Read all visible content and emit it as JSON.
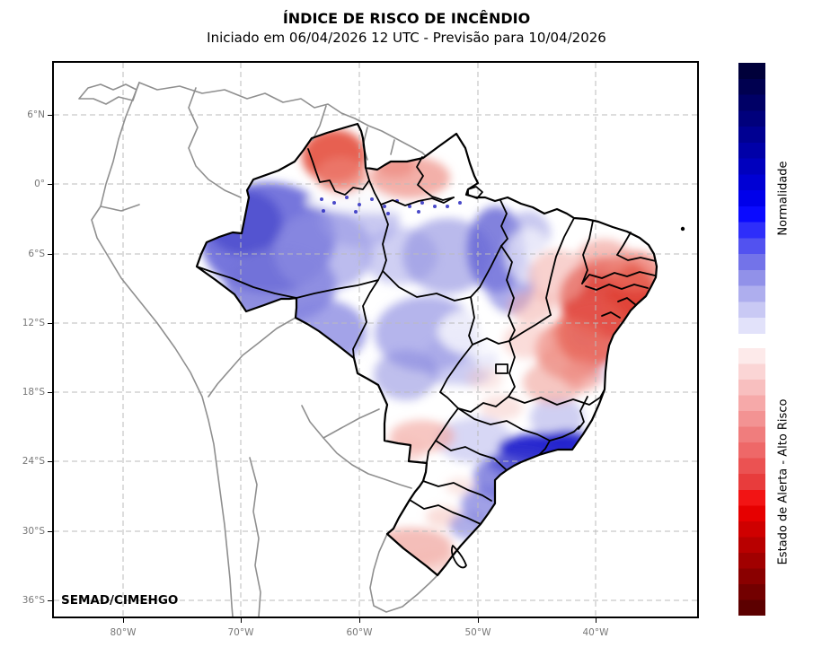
{
  "header": {
    "title": "ÍNDICE DE RISCO DE INCÊNDIO",
    "subtitle": "Iniciado em 06/04/2026 12 UTC - Previsão para 10/04/2026"
  },
  "map": {
    "credit": "SEMAD/CIMEHGO"
  },
  "axes": {
    "lat_ticks": [
      {
        "label": "6°N",
        "px": 128
      },
      {
        "label": "0°",
        "px": 205
      },
      {
        "label": "6°S",
        "px": 283
      },
      {
        "label": "12°S",
        "px": 360
      },
      {
        "label": "18°S",
        "px": 437
      },
      {
        "label": "24°S",
        "px": 514
      },
      {
        "label": "30°S",
        "px": 592
      },
      {
        "label": "36°S",
        "px": 669
      }
    ],
    "lon_ticks": [
      {
        "label": "80°W",
        "px": 137
      },
      {
        "label": "70°W",
        "px": 268
      },
      {
        "label": "60°W",
        "px": 400
      },
      {
        "label": "50°W",
        "px": 532
      },
      {
        "label": "40°W",
        "px": 663
      }
    ]
  },
  "colorbar": {
    "normal_label": "Normalidade",
    "alert_label": "Estado de Alerta - Alto Risco",
    "blue_steps": [
      "#00003a",
      "#000050",
      "#000066",
      "#00007c",
      "#000092",
      "#0000a8",
      "#0000be",
      "#0000d4",
      "#0000ea",
      "#0a0aff",
      "#2e2efa",
      "#5252f0",
      "#7373e9",
      "#9191e9",
      "#aeaeee",
      "#c9c9f4",
      "#e2e2fa"
    ],
    "red_steps": [
      "#fdeaea",
      "#fbd5d5",
      "#f8bfbf",
      "#f6a9a9",
      "#f39393",
      "#f07d7d",
      "#ee6868",
      "#eb5252",
      "#e83c3c",
      "#f21414",
      "#e60000",
      "#cf0000",
      "#b80000",
      "#a10000",
      "#8a0000",
      "#730000",
      "#5c0000"
    ]
  },
  "chart_data": {
    "type": "heatmap",
    "title": "ÍNDICE DE RISCO DE INCÊNDIO",
    "subtitle": "Iniciado em 06/04/2026 12 UTC - Previsão para 10/04/2026",
    "geography": "Brasil (malha estadual) sobre contorno da América do Sul",
    "grid": "dashed lat/lon",
    "legend_position": "colorbar à direita, dividida em dois blocos (azul em cima, vermelho embaixo)",
    "scale": {
      "normal": "azul = Normalidade (quanto mais escuro, mais próximo do normal)",
      "alert": "vermelho = Estado de Alerta - Alto Risco (quanto mais escuro, maior o risco)"
    },
    "x_ticks": [
      "80°W",
      "70°W",
      "60°W",
      "50°W",
      "40°W"
    ],
    "y_ticks": [
      "6°N",
      "0°",
      "6°S",
      "12°S",
      "18°S",
      "24°S",
      "30°S",
      "36°S"
    ],
    "point_feature": "Fernando de Noronha marcado como ponto (~32.5°W, 3.8°S)",
    "regions": [
      {
        "region": "Roraima",
        "reading": "risco moderado a alto (vermelho)"
      },
      {
        "region": "Norte do Pará",
        "reading": "risco leve (rosa claro)"
      },
      {
        "region": "Amapá",
        "reading": "neutro (branco / azul muito claro)"
      },
      {
        "region": "Amazonas",
        "reading": "normalidade (azul, mais escuro a oeste)"
      },
      {
        "region": "Acre",
        "reading": "normalidade leve (azul claro)"
      },
      {
        "region": "Rondônia",
        "reading": "normalidade (azul)"
      },
      {
        "region": "Pará centro-leste",
        "reading": "normalidade (azul claro com faixa branca ao longo do rio Amazonas)"
      },
      {
        "region": "Maranhão",
        "reading": "normalidade leve (azul claro) com litoral claro"
      },
      {
        "region": "Piauí",
        "reading": "risco leve (rosa)"
      },
      {
        "region": "Ceará",
        "reading": "risco moderado (vermelho claro)"
      },
      {
        "region": "RN / PB / PE interior",
        "reading": "alto risco (vermelho forte)"
      },
      {
        "region": "Alagoas / Sergipe",
        "reading": "risco moderado (vermelho)"
      },
      {
        "region": "Bahia norte e centro",
        "reading": "alto risco (vermelho forte)"
      },
      {
        "region": "Tocantins",
        "reading": "neutro a normalidade leve"
      },
      {
        "region": "Mato Grosso",
        "reading": "normalidade (azul)"
      },
      {
        "region": "Goiás / DF",
        "reading": "neutro com manchas rosa e azul claras"
      },
      {
        "region": "Minas Gerais",
        "reading": "norte rosa (risco leve), sul azul (normalidade)"
      },
      {
        "region": "Espírito Santo",
        "reading": "normalidade leve (azul claro)"
      },
      {
        "region": "Rio de Janeiro",
        "reading": "normalidade forte no litoral (azul escuro)"
      },
      {
        "region": "São Paulo",
        "reading": "faixa litorânea azul escuro (normalidade forte), interior neutro"
      },
      {
        "region": "Mato Grosso do Sul",
        "reading": "neutro com mancha rosa central"
      },
      {
        "region": "Paraná",
        "reading": "leste azul, oeste neutro/rosa claro"
      },
      {
        "region": "Santa Catarina",
        "reading": "leste azul, manchas rosa no oeste e litoral sul"
      },
      {
        "region": "Rio Grande do Sul",
        "reading": "interior rosa (risco leve), nordeste azul"
      }
    ],
    "render": {
      "blobs": [
        [
          238,
          195,
          75,
          62,
          "#5e5ed6",
          0.85
        ],
        [
          212,
          178,
          42,
          36,
          "#4646cc",
          0.7
        ],
        [
          252,
          248,
          62,
          42,
          "#7272da",
          0.8
        ],
        [
          300,
          300,
          48,
          36,
          "#8484e0",
          0.75
        ],
        [
          300,
          210,
          55,
          45,
          "#9090e2",
          0.6
        ],
        [
          340,
          175,
          45,
          30,
          "#9a9ae6",
          0.55
        ],
        [
          385,
          215,
          42,
          32,
          "#a8a8ea",
          0.55
        ],
        [
          438,
          215,
          50,
          42,
          "#8c8ce0",
          0.6
        ],
        [
          492,
          208,
          32,
          48,
          "#6262d4",
          0.8
        ],
        [
          508,
          242,
          28,
          38,
          "#8080de",
          0.65
        ],
        [
          528,
          190,
          25,
          25,
          "#9a9ae4",
          0.55
        ],
        [
          415,
          302,
          58,
          42,
          "#8e8ee2",
          0.65
        ],
        [
          452,
          332,
          42,
          30,
          "#a2a2e8",
          0.55
        ],
        [
          392,
          348,
          36,
          28,
          "#8a8ade",
          0.55
        ],
        [
          468,
          420,
          42,
          26,
          "#b0b0ec",
          0.5
        ],
        [
          560,
          396,
          30,
          24,
          "#a0a0e6",
          0.5
        ],
        [
          610,
          332,
          20,
          24,
          "#c8c8f2",
          0.45
        ],
        [
          588,
          300,
          14,
          18,
          "#8888dd",
          0.5
        ],
        [
          365,
          155,
          85,
          12,
          "#ffffff",
          0.9
        ],
        [
          470,
          300,
          42,
          26,
          "#ffffff",
          0.75
        ],
        [
          445,
          378,
          32,
          20,
          "#ffffff",
          0.7
        ],
        [
          528,
          215,
          26,
          30,
          "#ffffff",
          0.6
        ],
        [
          500,
          330,
          30,
          20,
          "#ffffff",
          0.6
        ],
        [
          610,
          200,
          25,
          12,
          "#ffffff",
          0.7
        ],
        [
          312,
          104,
          36,
          30,
          "#e4503f",
          0.9
        ],
        [
          320,
          126,
          28,
          20,
          "#ec7d70",
          0.75
        ],
        [
          396,
          128,
          45,
          24,
          "#f09c93",
          0.8
        ],
        [
          380,
          115,
          22,
          13,
          "#ec867c",
          0.6
        ],
        [
          618,
          262,
          55,
          45,
          "#dd3c30",
          0.9
        ],
        [
          640,
          268,
          28,
          24,
          "#e04438",
          0.8
        ],
        [
          600,
          300,
          40,
          38,
          "#e4544a",
          0.8
        ],
        [
          646,
          232,
          30,
          22,
          "#e9695d",
          0.7
        ],
        [
          612,
          216,
          30,
          20,
          "#f0968d",
          0.6
        ],
        [
          560,
          238,
          32,
          30,
          "#f3aca6",
          0.55
        ],
        [
          576,
          320,
          40,
          34,
          "#ea6d61",
          0.7
        ],
        [
          556,
          356,
          34,
          24,
          "#f0a19a",
          0.6
        ],
        [
          526,
          310,
          26,
          20,
          "#f5b9b3",
          0.5
        ],
        [
          588,
          348,
          22,
          18,
          "#ee8c84",
          0.6
        ],
        [
          410,
          416,
          36,
          18,
          "#f2a8a1",
          0.65
        ],
        [
          390,
          432,
          24,
          14,
          "#f5bcb6",
          0.55
        ],
        [
          398,
          540,
          46,
          22,
          "#f0a8a1",
          0.75
        ],
        [
          424,
          556,
          30,
          14,
          "#f4bab4",
          0.6
        ],
        [
          434,
          506,
          20,
          12,
          "#f5c2bc",
          0.55
        ],
        [
          452,
          472,
          16,
          10,
          "#f6cac4",
          0.45
        ],
        [
          498,
          384,
          24,
          14,
          "#f5c0ba",
          0.45
        ],
        [
          480,
          352,
          20,
          13,
          "#f6c6c0",
          0.4
        ],
        [
          532,
          272,
          26,
          18,
          "#f2a8a2",
          0.5
        ],
        [
          543,
          429,
          48,
          16,
          "#1c1ccc",
          0.95
        ],
        [
          520,
          446,
          36,
          14,
          "#3636d0",
          0.8
        ],
        [
          572,
          421,
          26,
          11,
          "#2222cc",
          0.85
        ],
        [
          497,
          462,
          30,
          24,
          "#5c5cd4",
          0.7
        ],
        [
          479,
          492,
          26,
          20,
          "#6e6ed8",
          0.65
        ],
        [
          462,
          516,
          22,
          15,
          "#7c7cda",
          0.6
        ]
      ],
      "river_dots": [
        [
          298,
          152
        ],
        [
          312,
          156
        ],
        [
          326,
          150
        ],
        [
          340,
          158
        ],
        [
          354,
          152
        ],
        [
          368,
          160
        ],
        [
          382,
          154
        ],
        [
          396,
          160
        ],
        [
          410,
          156
        ],
        [
          424,
          160
        ],
        [
          300,
          165
        ],
        [
          336,
          166
        ],
        [
          372,
          168
        ],
        [
          406,
          166
        ],
        [
          438,
          160
        ],
        [
          452,
          156
        ]
      ]
    }
  }
}
